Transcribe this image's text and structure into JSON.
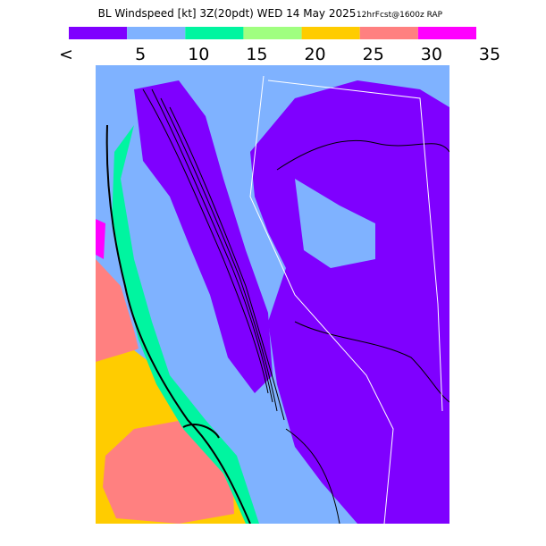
{
  "title": "BL Windspeed [kt] 3Z(20pdt) WED 14 May 2025",
  "subtitle": "12hrFcst@1600z RAP",
  "colorbar": {
    "colors": [
      "#7f00ff",
      "#7fb2ff",
      "#00f5a0",
      "#a0ff80",
      "#ffcc00",
      "#ff8080",
      "#ff00ff"
    ],
    "labels": [
      "<",
      "5",
      "10",
      "15",
      "20",
      "25",
      "30",
      "35"
    ]
  }
}
